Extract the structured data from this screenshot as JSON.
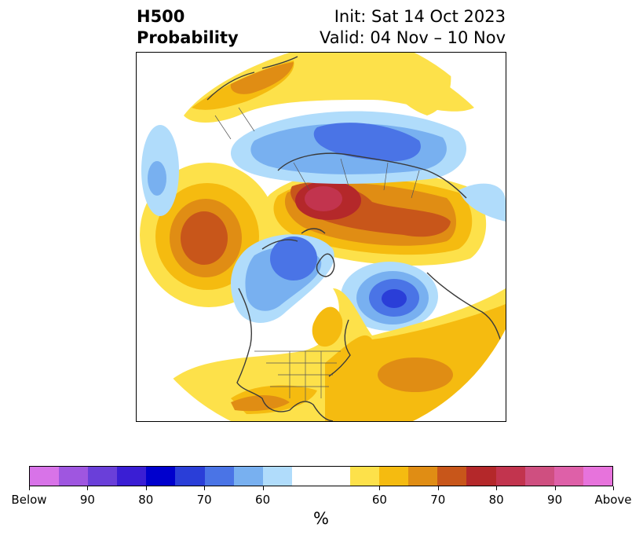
{
  "title": {
    "line1": "H500",
    "line2": "Probability",
    "init": "Init: Sat 14 Oct 2023",
    "valid": "Valid: 04 Nov – 10 Nov"
  },
  "colorbar": {
    "unit": "%",
    "colors": [
      "#d873e8",
      "#9f56e0",
      "#6a3fd9",
      "#3a1ed4",
      "#0000cd",
      "#2a3ed8",
      "#4a74e6",
      "#78b0f0",
      "#b0dcfb",
      "#ffffff",
      "#ffffff",
      "#fde14a",
      "#f5bb10",
      "#e08d14",
      "#c8561a",
      "#b4282a",
      "#c2344e",
      "#cf4f80",
      "#de60a8",
      "#e773dc"
    ],
    "ticks": [
      {
        "label": "Below",
        "slot": 0
      },
      {
        "label": "90",
        "slot": 2
      },
      {
        "label": "80",
        "slot": 4
      },
      {
        "label": "70",
        "slot": 6
      },
      {
        "label": "60",
        "slot": 8
      },
      {
        "label": "60",
        "slot": 12
      },
      {
        "label": "70",
        "slot": 14
      },
      {
        "label": "80",
        "slot": 16
      },
      {
        "label": "90",
        "slot": 18
      },
      {
        "label": "Above",
        "slot": 20
      }
    ]
  },
  "map": {
    "colors": {
      "above_60": "#fde14a",
      "above_65": "#f5bb10",
      "above_70": "#e08d14",
      "above_75": "#c8561a",
      "above_80": "#b4282a",
      "above_85": "#c2344e",
      "below_60": "#b0dcfb",
      "below_65": "#78b0f0",
      "below_70": "#4a74e6",
      "below_75": "#2a3ed8",
      "coast": "#3a3a3a"
    }
  }
}
